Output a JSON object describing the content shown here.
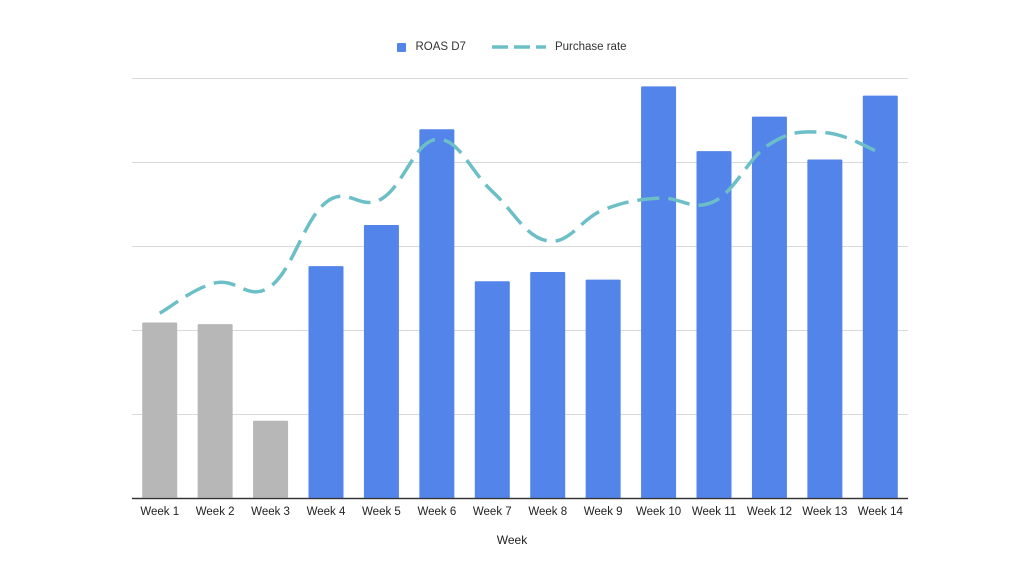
{
  "chart_data": {
    "type": "bar",
    "title": "",
    "xlabel": "Week",
    "ylabel": "",
    "categories": [
      "Week 1",
      "Week 2",
      "Week 3",
      "Week 4",
      "Week 5",
      "Week 6",
      "Week 7",
      "Week 8",
      "Week 9",
      "Week 10",
      "Week 11",
      "Week 12",
      "Week 13",
      "Week 14"
    ],
    "ylim": [
      0,
      5
    ],
    "y2lim": [
      0,
      5
    ],
    "grid": true,
    "legend_placement": "top",
    "series": [
      {
        "name": "ROAS D7",
        "kind": "bar",
        "color": "#5384EA",
        "muted_color": "#B7B7B7",
        "muted_categories": [
          "Week 1",
          "Week 2",
          "Week 3"
        ],
        "values": [
          2.09,
          2.07,
          0.92,
          2.76,
          3.25,
          4.39,
          2.58,
          2.69,
          2.6,
          4.9,
          4.13,
          4.54,
          4.03,
          4.79
        ]
      },
      {
        "name": "Purchase rate",
        "kind": "line",
        "style": "dashed",
        "color": "#6CBFC7",
        "values": [
          2.2,
          2.56,
          2.52,
          3.52,
          3.56,
          4.27,
          3.65,
          3.06,
          3.43,
          3.57,
          3.53,
          4.21,
          4.35,
          4.11
        ]
      }
    ]
  }
}
